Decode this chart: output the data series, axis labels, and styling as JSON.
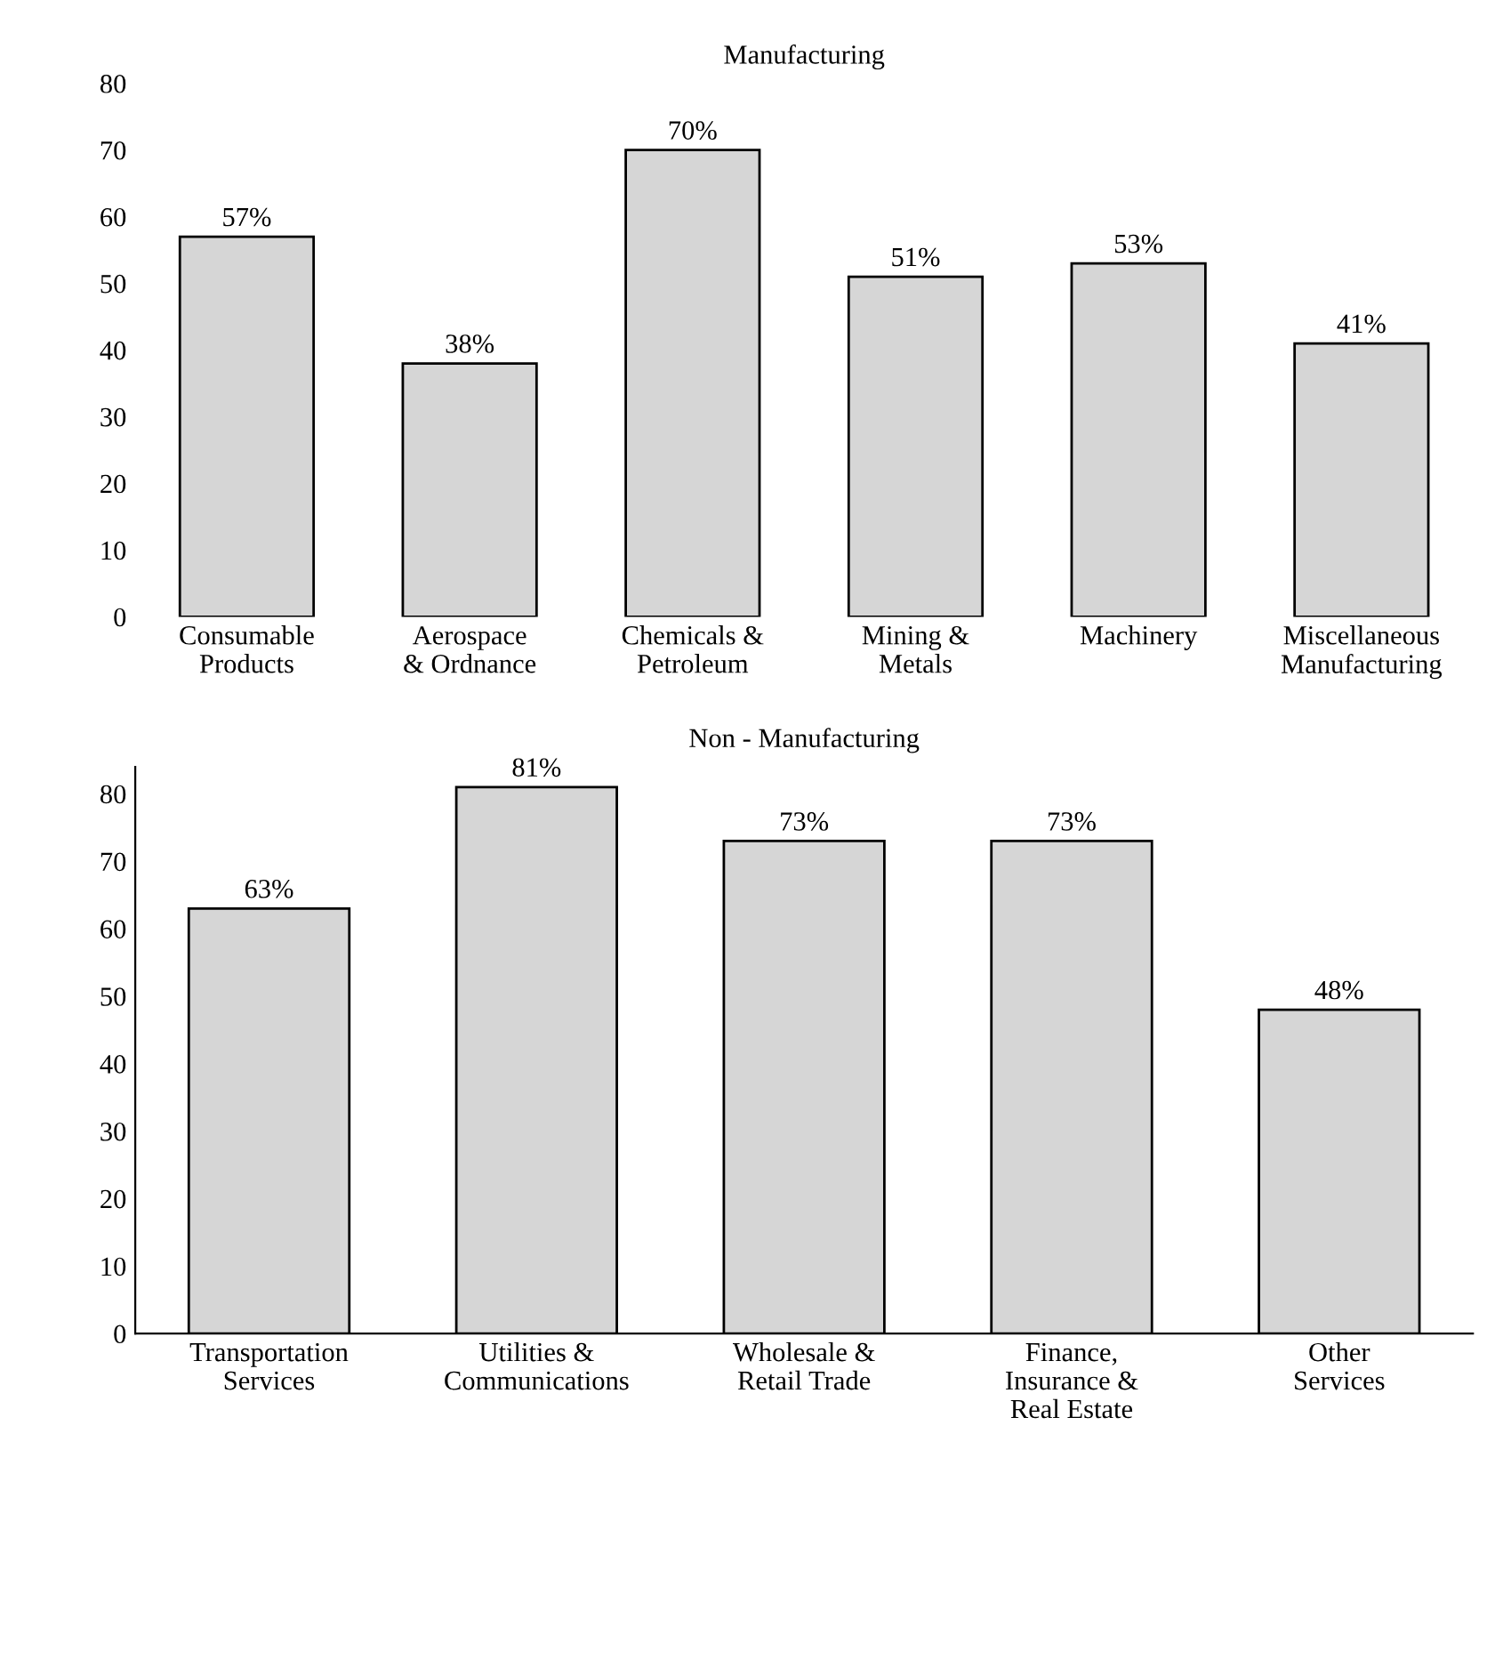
{
  "chart_data": [
    {
      "type": "bar",
      "title": "Manufacturing",
      "categories": [
        "Consumable\nProducts",
        "Aerospace\n& Ordnance",
        "Chemicals &\nPetroleum",
        "Mining &\nMetals",
        "Machinery",
        "Miscellaneous\nManufacturing"
      ],
      "values": [
        57,
        38,
        70,
        51,
        53,
        41
      ],
      "value_labels": [
        "57%",
        "38%",
        "70%",
        "51%",
        "53%",
        "41%"
      ],
      "color": "#d6d6d6",
      "ylim": [
        0,
        80
      ],
      "yticks": [
        0,
        10,
        20,
        30,
        40,
        50,
        60,
        70,
        80
      ],
      "grid": false,
      "legend": false
    },
    {
      "type": "bar",
      "title": "Non - Manufacturing",
      "categories": [
        "Transportation\nServices",
        "Utilities &\nCommunications",
        "Wholesale &\nRetail Trade",
        "Finance,\nInsurance &\nReal Estate",
        "Other\nServices"
      ],
      "values": [
        63,
        81,
        73,
        73,
        48
      ],
      "value_labels": [
        "63%",
        "81%",
        "73%",
        "73%",
        "48%"
      ],
      "color": "#d6d6d6",
      "ylim": [
        0,
        84
      ],
      "yticks": [
        0,
        10,
        20,
        30,
        40,
        50,
        60,
        70,
        80
      ],
      "grid": false,
      "legend": false
    }
  ]
}
